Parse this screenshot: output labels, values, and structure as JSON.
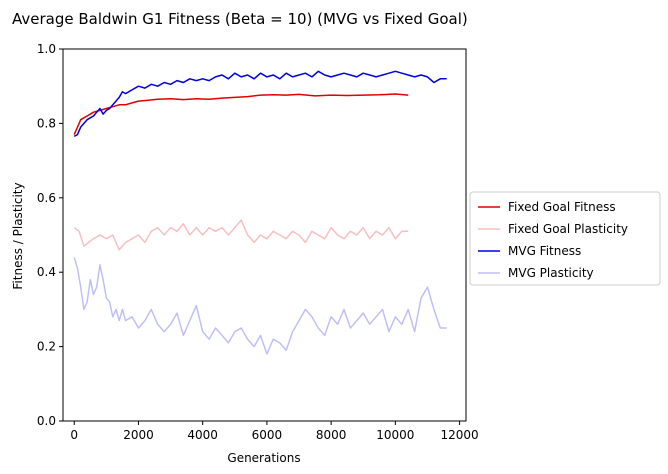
{
  "chart_data": {
    "type": "line",
    "title": "Average Baldwin G1 Fitness (Beta = 10) (MVG vs Fixed Goal)",
    "xlabel": "Generations",
    "ylabel": "Fitness / Plasticity",
    "xlim": [
      -350,
      12200
    ],
    "ylim": [
      0,
      1
    ],
    "xticks": [
      0,
      2000,
      4000,
      6000,
      8000,
      10000,
      12000
    ],
    "yticks": [
      0.0,
      0.2,
      0.4,
      0.6,
      0.8,
      1.0
    ],
    "grid": false,
    "legend_position": "outside-right",
    "series": [
      {
        "name": "Fixed Goal Fitness",
        "color": "#e00000",
        "opacity": 1.0,
        "x": [
          0,
          100,
          200,
          300,
          400,
          600,
          800,
          1000,
          1200,
          1400,
          1600,
          1800,
          2000,
          2300,
          2600,
          3000,
          3400,
          3800,
          4200,
          4600,
          5000,
          5400,
          5800,
          6200,
          6600,
          7000,
          7500,
          8000,
          8500,
          9000,
          9500,
          10000,
          10400
        ],
        "y": [
          0.77,
          0.79,
          0.81,
          0.815,
          0.82,
          0.83,
          0.835,
          0.84,
          0.845,
          0.85,
          0.85,
          0.855,
          0.86,
          0.862,
          0.865,
          0.866,
          0.864,
          0.866,
          0.865,
          0.868,
          0.87,
          0.872,
          0.876,
          0.877,
          0.876,
          0.878,
          0.874,
          0.876,
          0.875,
          0.876,
          0.877,
          0.879,
          0.876
        ]
      },
      {
        "name": "Fixed Goal Plasticity",
        "color": "#e00000",
        "opacity": 0.25,
        "x": [
          0,
          150,
          300,
          450,
          600,
          800,
          1000,
          1200,
          1400,
          1600,
          1800,
          2000,
          2200,
          2400,
          2600,
          2800,
          3000,
          3200,
          3400,
          3600,
          3800,
          4000,
          4200,
          4400,
          4600,
          4800,
          5000,
          5200,
          5400,
          5600,
          5800,
          6000,
          6200,
          6400,
          6600,
          6800,
          7000,
          7200,
          7400,
          7600,
          7800,
          8000,
          8200,
          8400,
          8600,
          8800,
          9000,
          9200,
          9400,
          9600,
          9800,
          10000,
          10200,
          10400
        ],
        "y": [
          0.52,
          0.51,
          0.47,
          0.48,
          0.49,
          0.5,
          0.49,
          0.5,
          0.46,
          0.48,
          0.49,
          0.5,
          0.48,
          0.51,
          0.52,
          0.5,
          0.52,
          0.51,
          0.53,
          0.5,
          0.52,
          0.5,
          0.52,
          0.51,
          0.52,
          0.5,
          0.52,
          0.54,
          0.5,
          0.48,
          0.5,
          0.49,
          0.51,
          0.5,
          0.49,
          0.51,
          0.5,
          0.48,
          0.51,
          0.5,
          0.49,
          0.52,
          0.5,
          0.49,
          0.51,
          0.5,
          0.52,
          0.49,
          0.51,
          0.5,
          0.52,
          0.49,
          0.51,
          0.51
        ]
      },
      {
        "name": "MVG Fitness",
        "color": "#0000e0",
        "opacity": 1.0,
        "x": [
          0,
          100,
          200,
          300,
          400,
          500,
          600,
          700,
          800,
          900,
          1000,
          1100,
          1200,
          1300,
          1400,
          1500,
          1600,
          1800,
          2000,
          2200,
          2400,
          2600,
          2800,
          3000,
          3200,
          3400,
          3600,
          3800,
          4000,
          4200,
          4400,
          4600,
          4800,
          5000,
          5200,
          5400,
          5600,
          5800,
          6000,
          6200,
          6400,
          6600,
          6800,
          7000,
          7200,
          7400,
          7600,
          7800,
          8000,
          8200,
          8400,
          8600,
          8800,
          9000,
          9200,
          9400,
          9600,
          9800,
          10000,
          10200,
          10400,
          10600,
          10800,
          11000,
          11200,
          11400,
          11600
        ],
        "y": [
          0.765,
          0.77,
          0.79,
          0.8,
          0.81,
          0.815,
          0.82,
          0.83,
          0.84,
          0.825,
          0.835,
          0.84,
          0.85,
          0.86,
          0.87,
          0.885,
          0.88,
          0.89,
          0.9,
          0.895,
          0.905,
          0.9,
          0.91,
          0.905,
          0.915,
          0.91,
          0.92,
          0.915,
          0.92,
          0.915,
          0.925,
          0.93,
          0.92,
          0.935,
          0.925,
          0.93,
          0.92,
          0.935,
          0.925,
          0.93,
          0.92,
          0.935,
          0.925,
          0.93,
          0.935,
          0.925,
          0.94,
          0.93,
          0.925,
          0.93,
          0.935,
          0.93,
          0.925,
          0.935,
          0.93,
          0.925,
          0.93,
          0.935,
          0.94,
          0.935,
          0.93,
          0.925,
          0.93,
          0.925,
          0.91,
          0.92,
          0.92
        ]
      },
      {
        "name": "MVG Plasticity",
        "color": "#0000e0",
        "opacity": 0.25,
        "x": [
          0,
          100,
          200,
          300,
          400,
          500,
          600,
          700,
          800,
          900,
          1000,
          1100,
          1200,
          1300,
          1400,
          1500,
          1600,
          1800,
          2000,
          2200,
          2400,
          2600,
          2800,
          3000,
          3200,
          3400,
          3600,
          3800,
          4000,
          4200,
          4400,
          4600,
          4800,
          5000,
          5200,
          5400,
          5600,
          5800,
          6000,
          6200,
          6400,
          6600,
          6800,
          7000,
          7200,
          7400,
          7600,
          7800,
          8000,
          8200,
          8400,
          8600,
          8800,
          9000,
          9200,
          9400,
          9600,
          9800,
          10000,
          10200,
          10400,
          10600,
          10800,
          11000,
          11200,
          11400,
          11600
        ],
        "y": [
          0.44,
          0.41,
          0.36,
          0.3,
          0.32,
          0.38,
          0.34,
          0.36,
          0.42,
          0.38,
          0.33,
          0.32,
          0.28,
          0.3,
          0.27,
          0.3,
          0.27,
          0.28,
          0.25,
          0.27,
          0.3,
          0.26,
          0.24,
          0.26,
          0.29,
          0.23,
          0.27,
          0.31,
          0.24,
          0.22,
          0.25,
          0.23,
          0.21,
          0.24,
          0.25,
          0.22,
          0.2,
          0.23,
          0.18,
          0.22,
          0.21,
          0.19,
          0.24,
          0.27,
          0.3,
          0.28,
          0.25,
          0.23,
          0.28,
          0.26,
          0.3,
          0.25,
          0.27,
          0.29,
          0.26,
          0.28,
          0.3,
          0.24,
          0.28,
          0.26,
          0.3,
          0.24,
          0.33,
          0.36,
          0.3,
          0.25,
          0.25
        ]
      }
    ]
  }
}
